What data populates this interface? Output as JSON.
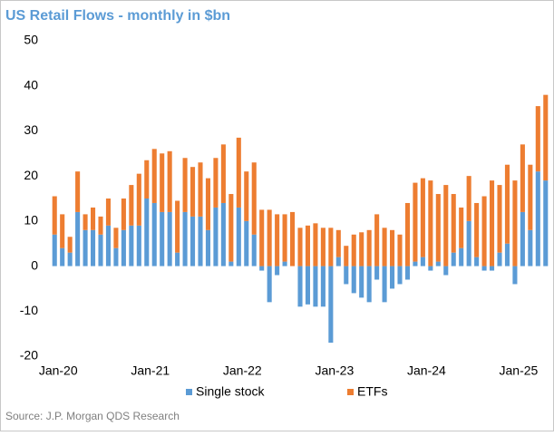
{
  "chart_data": {
    "type": "stacked_bar",
    "title": "US Retail Flows - monthly in $bn",
    "source": "Source: J.P. Morgan QDS Research",
    "categories": [
      "Jan-20",
      null,
      null,
      null,
      null,
      null,
      null,
      null,
      null,
      null,
      null,
      null,
      "Jan-21",
      null,
      null,
      null,
      null,
      null,
      null,
      null,
      null,
      null,
      null,
      null,
      "Jan-22",
      null,
      null,
      null,
      null,
      null,
      null,
      null,
      null,
      null,
      null,
      null,
      "Jan-23",
      null,
      null,
      null,
      null,
      null,
      null,
      null,
      null,
      null,
      null,
      null,
      "Jan-24",
      null,
      null,
      null,
      null,
      null,
      null,
      null,
      null,
      null,
      null,
      null,
      "Jan-25",
      null,
      null,
      null,
      null
    ],
    "series": [
      {
        "name": "Single stock",
        "color": "#5b9bd5",
        "values": [
          7,
          4,
          3,
          12,
          8,
          8,
          7,
          9,
          4,
          8,
          9,
          9,
          15,
          14,
          12,
          12,
          3,
          12,
          11,
          11,
          8,
          13,
          14,
          1,
          13,
          10,
          7,
          -1,
          -8,
          -2,
          1,
          0,
          -9,
          -8.5,
          -9,
          -9,
          -17,
          2,
          -4,
          -6,
          -7,
          -8,
          -3,
          -8,
          -5,
          -4,
          -3,
          1,
          2,
          -1,
          1,
          -2,
          3,
          4,
          10,
          2,
          -1,
          -1,
          3,
          5,
          -4,
          12,
          8,
          21,
          19
        ]
      },
      {
        "name": "ETFs",
        "color": "#ed7d31",
        "values": [
          8.5,
          7.5,
          3.5,
          9,
          3.5,
          5,
          4,
          6,
          4.5,
          7,
          9,
          11.5,
          8.5,
          12,
          13,
          13.5,
          11.5,
          12,
          11,
          12,
          11.5,
          11,
          13,
          15,
          15.5,
          11,
          16,
          12.5,
          12.5,
          11.5,
          10.5,
          12,
          8.5,
          9,
          9.5,
          8.5,
          8.5,
          6,
          4.5,
          7,
          7.5,
          8,
          11.5,
          8.5,
          8,
          7,
          14,
          17.5,
          17.5,
          19,
          15,
          18,
          13,
          9,
          10,
          12,
          15.5,
          19,
          15,
          17.5,
          19,
          15,
          14.5,
          14.5,
          19
        ]
      }
    ],
    "ylim": [
      -20,
      50
    ],
    "yticks": [
      -20,
      -10,
      0,
      10,
      20,
      30,
      40,
      50
    ],
    "legend": "bottom"
  }
}
